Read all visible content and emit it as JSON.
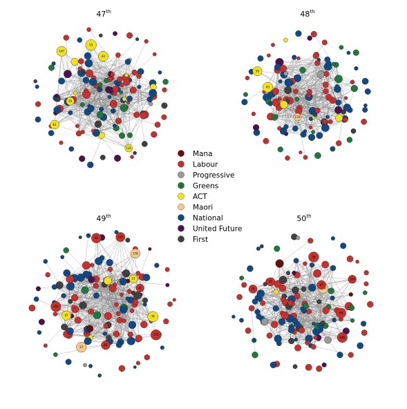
{
  "panels": [
    {
      "id": "p47",
      "num": "47",
      "sup": "th",
      "callouts": [
        {
          "party": "ACT",
          "text": "61"
        },
        {
          "party": "ACT",
          "text": "53"
        },
        {
          "party": "ACT",
          "text": "43"
        },
        {
          "party": "ACT",
          "text": "29"
        },
        {
          "party": "ACT",
          "text": "147"
        },
        {
          "party": "ACT",
          "text": "131"
        }
      ]
    },
    {
      "id": "p48",
      "num": "48",
      "sup": "th",
      "callouts": [
        {
          "party": "ACT",
          "text": "59"
        },
        {
          "party": "Maori",
          "text": "176"
        },
        {
          "party": "ACT",
          "text": "43"
        }
      ]
    },
    {
      "id": "p49",
      "num": "49",
      "sup": "th",
      "callouts": [
        {
          "party": "Labour",
          "text": "66"
        },
        {
          "party": "Labour",
          "text": "41"
        },
        {
          "party": "Maori",
          "text": "27"
        },
        {
          "party": "ACT",
          "text": "57"
        },
        {
          "party": "Labour",
          "text": "163"
        },
        {
          "party": "Labour",
          "text": "175"
        },
        {
          "party": "ACT",
          "text": "76"
        },
        {
          "party": "Maori",
          "text": "176"
        },
        {
          "party": "Labour",
          "text": "104"
        },
        {
          "party": "ACT",
          "text": "47"
        },
        {
          "party": "Labour",
          "text": "83"
        }
      ]
    },
    {
      "id": "p50",
      "num": "50",
      "sup": "th",
      "callouts": [
        {
          "party": "Maori",
          "text": "176"
        },
        {
          "party": "Labour",
          "text": "76"
        },
        {
          "party": "Labour",
          "text": "186"
        },
        {
          "party": "Labour",
          "text": "61"
        },
        {
          "party": "Labour",
          "text": "47"
        },
        {
          "party": "Labour",
          "text": "89"
        },
        {
          "party": "Labour",
          "text": "104"
        },
        {
          "party": "Labour",
          "text": "36"
        }
      ]
    }
  ],
  "legend": [
    {
      "label": "Mana",
      "color": "#6b0d0d"
    },
    {
      "label": "Labour",
      "color": "#c9302c"
    },
    {
      "label": "Progressive",
      "color": "#9a9a9a"
    },
    {
      "label": "Greens",
      "color": "#1e7a3c"
    },
    {
      "label": "ACT",
      "color": "#f2e21b"
    },
    {
      "label": "Maori",
      "color": "#f6c98a"
    },
    {
      "label": "National",
      "color": "#0f4a86"
    },
    {
      "label": "United Future",
      "color": "#4a124e"
    },
    {
      "label": "First",
      "color": "#404040"
    }
  ],
  "edge_color": "#8c8c8c"
}
